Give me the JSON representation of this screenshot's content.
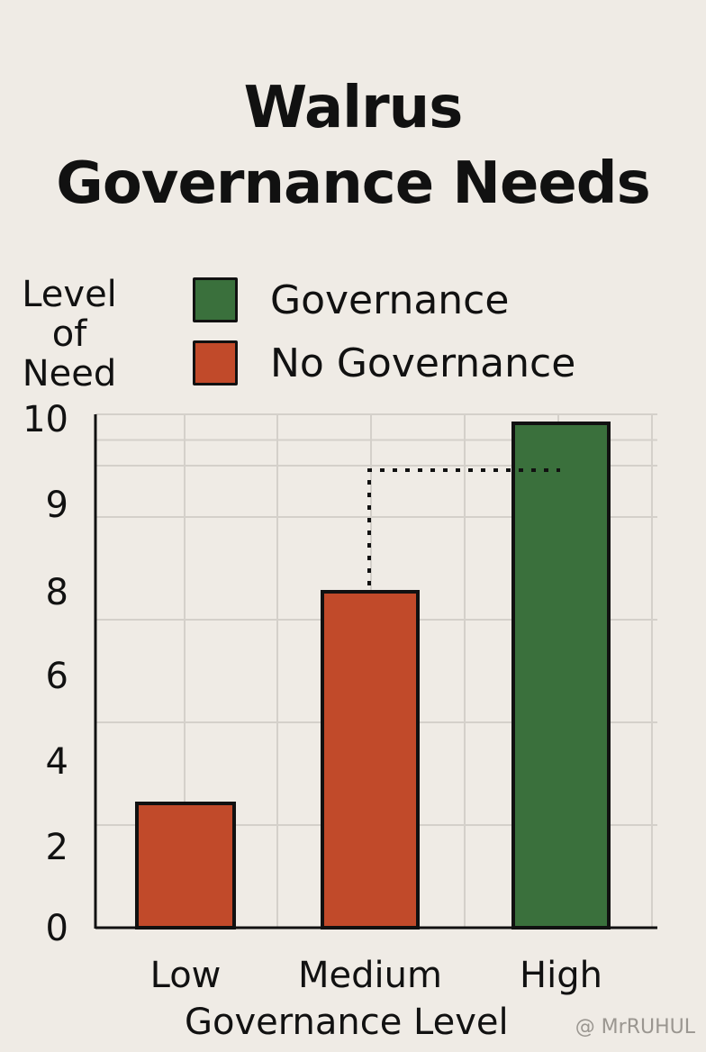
{
  "title_lines": [
    "Walrus",
    "Governance Needs"
  ],
  "chart_data": {
    "type": "bar",
    "title": "Walrus Governance Needs",
    "xlabel": "Governance Level",
    "ylabel_lines": [
      "Level",
      "of",
      "Need"
    ],
    "categories": [
      "Low",
      "Medium",
      "High"
    ],
    "values": [
      3,
      8,
      10
    ],
    "bar_series": [
      "No Governance",
      "No Governance",
      "Governance"
    ],
    "legend": [
      {
        "name": "Governance",
        "color": "#3a703c"
      },
      {
        "name": "No Governance",
        "color": "#c14a2a"
      }
    ],
    "legend_position": "top",
    "ylim": [
      0,
      10
    ],
    "yticks": [
      0,
      2,
      4,
      6,
      8,
      9,
      10
    ],
    "grid": true,
    "annotation": {
      "type": "dotted-line",
      "from_category": "Medium",
      "to_category": "High",
      "level": 9.4
    }
  },
  "watermark": "@ MrRUHUL"
}
